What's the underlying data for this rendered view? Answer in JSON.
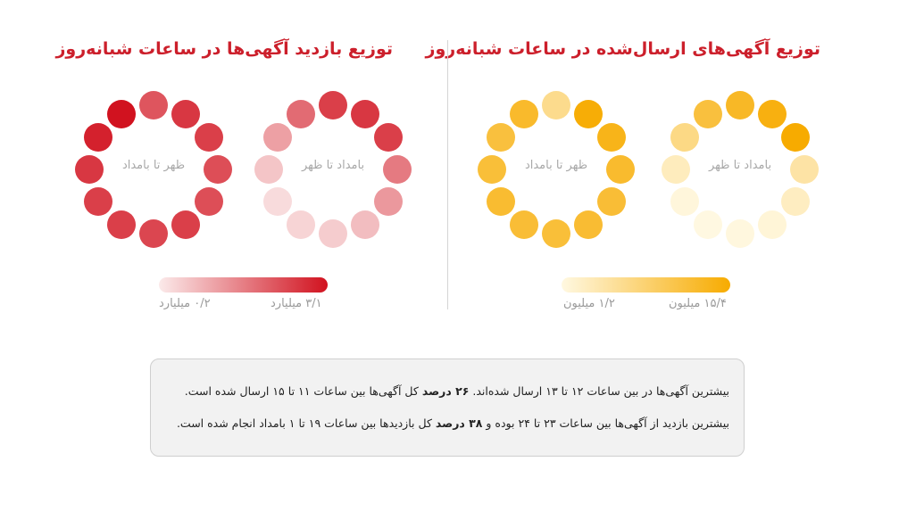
{
  "titles": {
    "posted_ads": "توزیع آگهی‌های ارسال‌شده در ساعات شبانه‌روز",
    "ad_views": "توزیع بازدید آگهی‌ها در ساعات شبانه‌روز"
  },
  "colors": {
    "title": "#cc1f2b",
    "yellow_max": "#f7ab00",
    "yellow_min": "#fff8e1",
    "red_max": "#d1121f",
    "red_min": "#fbeaea"
  },
  "chart_data": [
    {
      "type": "radial-heatmap",
      "title": "توزیع آگهی‌های ارسال‌شده در ساعات شبانه‌روز",
      "unit": "میلیون",
      "scale": {
        "min": 1.2,
        "max": 15.4,
        "min_label": "۱/۲ میلیون",
        "max_label": "۱۵/۴ میلیون"
      },
      "rings": [
        {
          "label": "بامداد تا ظهر",
          "hours": [
            0,
            1,
            2,
            3,
            4,
            5,
            6,
            7,
            8,
            9,
            10,
            11
          ],
          "values": [
            13.0,
            14.4,
            15.4,
            5.0,
            3.2,
            1.8,
            1.4,
            1.2,
            1.6,
            3.5,
            7.0,
            11.5
          ]
        },
        {
          "label": "ظهر تا بامداد",
          "hours": [
            12,
            13,
            14,
            15,
            16,
            17,
            18,
            19,
            20,
            21,
            22,
            23
          ],
          "values": [
            6.5,
            15.0,
            13.8,
            12.5,
            12.0,
            12.2,
            11.8,
            12.0,
            12.3,
            11.8,
            11.5,
            12.6
          ]
        }
      ]
    },
    {
      "type": "radial-heatmap",
      "title": "توزیع بازدید آگهی‌ها در ساعات شبانه‌روز",
      "unit": "میلیارد",
      "scale": {
        "min": 0.2,
        "max": 3.1,
        "min_label": "۰/۲ میلیارد",
        "max_label": "۳/۱ میلیارد"
      },
      "rings": [
        {
          "label": "بامداد تا ظهر",
          "hours": [
            0,
            1,
            2,
            3,
            4,
            5,
            6,
            7,
            8,
            9,
            10,
            11
          ],
          "values": [
            2.5,
            2.6,
            2.5,
            1.7,
            1.3,
            0.8,
            0.6,
            0.5,
            0.4,
            0.7,
            1.2,
            1.9
          ]
        },
        {
          "label": "ظهر تا بامداد",
          "hours": [
            12,
            13,
            14,
            15,
            16,
            17,
            18,
            19,
            20,
            21,
            22,
            23
          ],
          "values": [
            2.2,
            2.6,
            2.5,
            2.3,
            2.3,
            2.5,
            2.4,
            2.5,
            2.5,
            2.6,
            2.9,
            3.1
          ]
        }
      ]
    }
  ],
  "clock_labels": {
    "right_a": "بامداد تا ظهر",
    "right_b": "ظهر تا بامداد",
    "left_a": "بامداد تا ظهر",
    "left_b": "ظهر تا بامداد"
  },
  "legends": {
    "yellow_max": "۱۵/۴ میلیون",
    "yellow_min": "۱/۲ میلیون",
    "red_max": "۳/۱ میلیارد",
    "red_min": "۰/۲ میلیارد"
  },
  "notes": {
    "line1_a": "بیشترین آگهی‌ها در بین ساعات ۱۲ تا ۱۳ ارسال شده‌اند.",
    "line1_b": "۲۶ درصد",
    "line1_c": "کل آگهی‌ها بین ساعات ۱۱ تا ۱۵ ارسال شده است.",
    "line2_a": "بیشترین بازدید از آگهی‌ها بین ساعات ۲۳ تا ۲۴ بوده و",
    "line2_b": "۳۸ درصد",
    "line2_c": "کل بازدیدها بین ساعات ۱۹ تا ۱ بامداد انجام شده است."
  }
}
